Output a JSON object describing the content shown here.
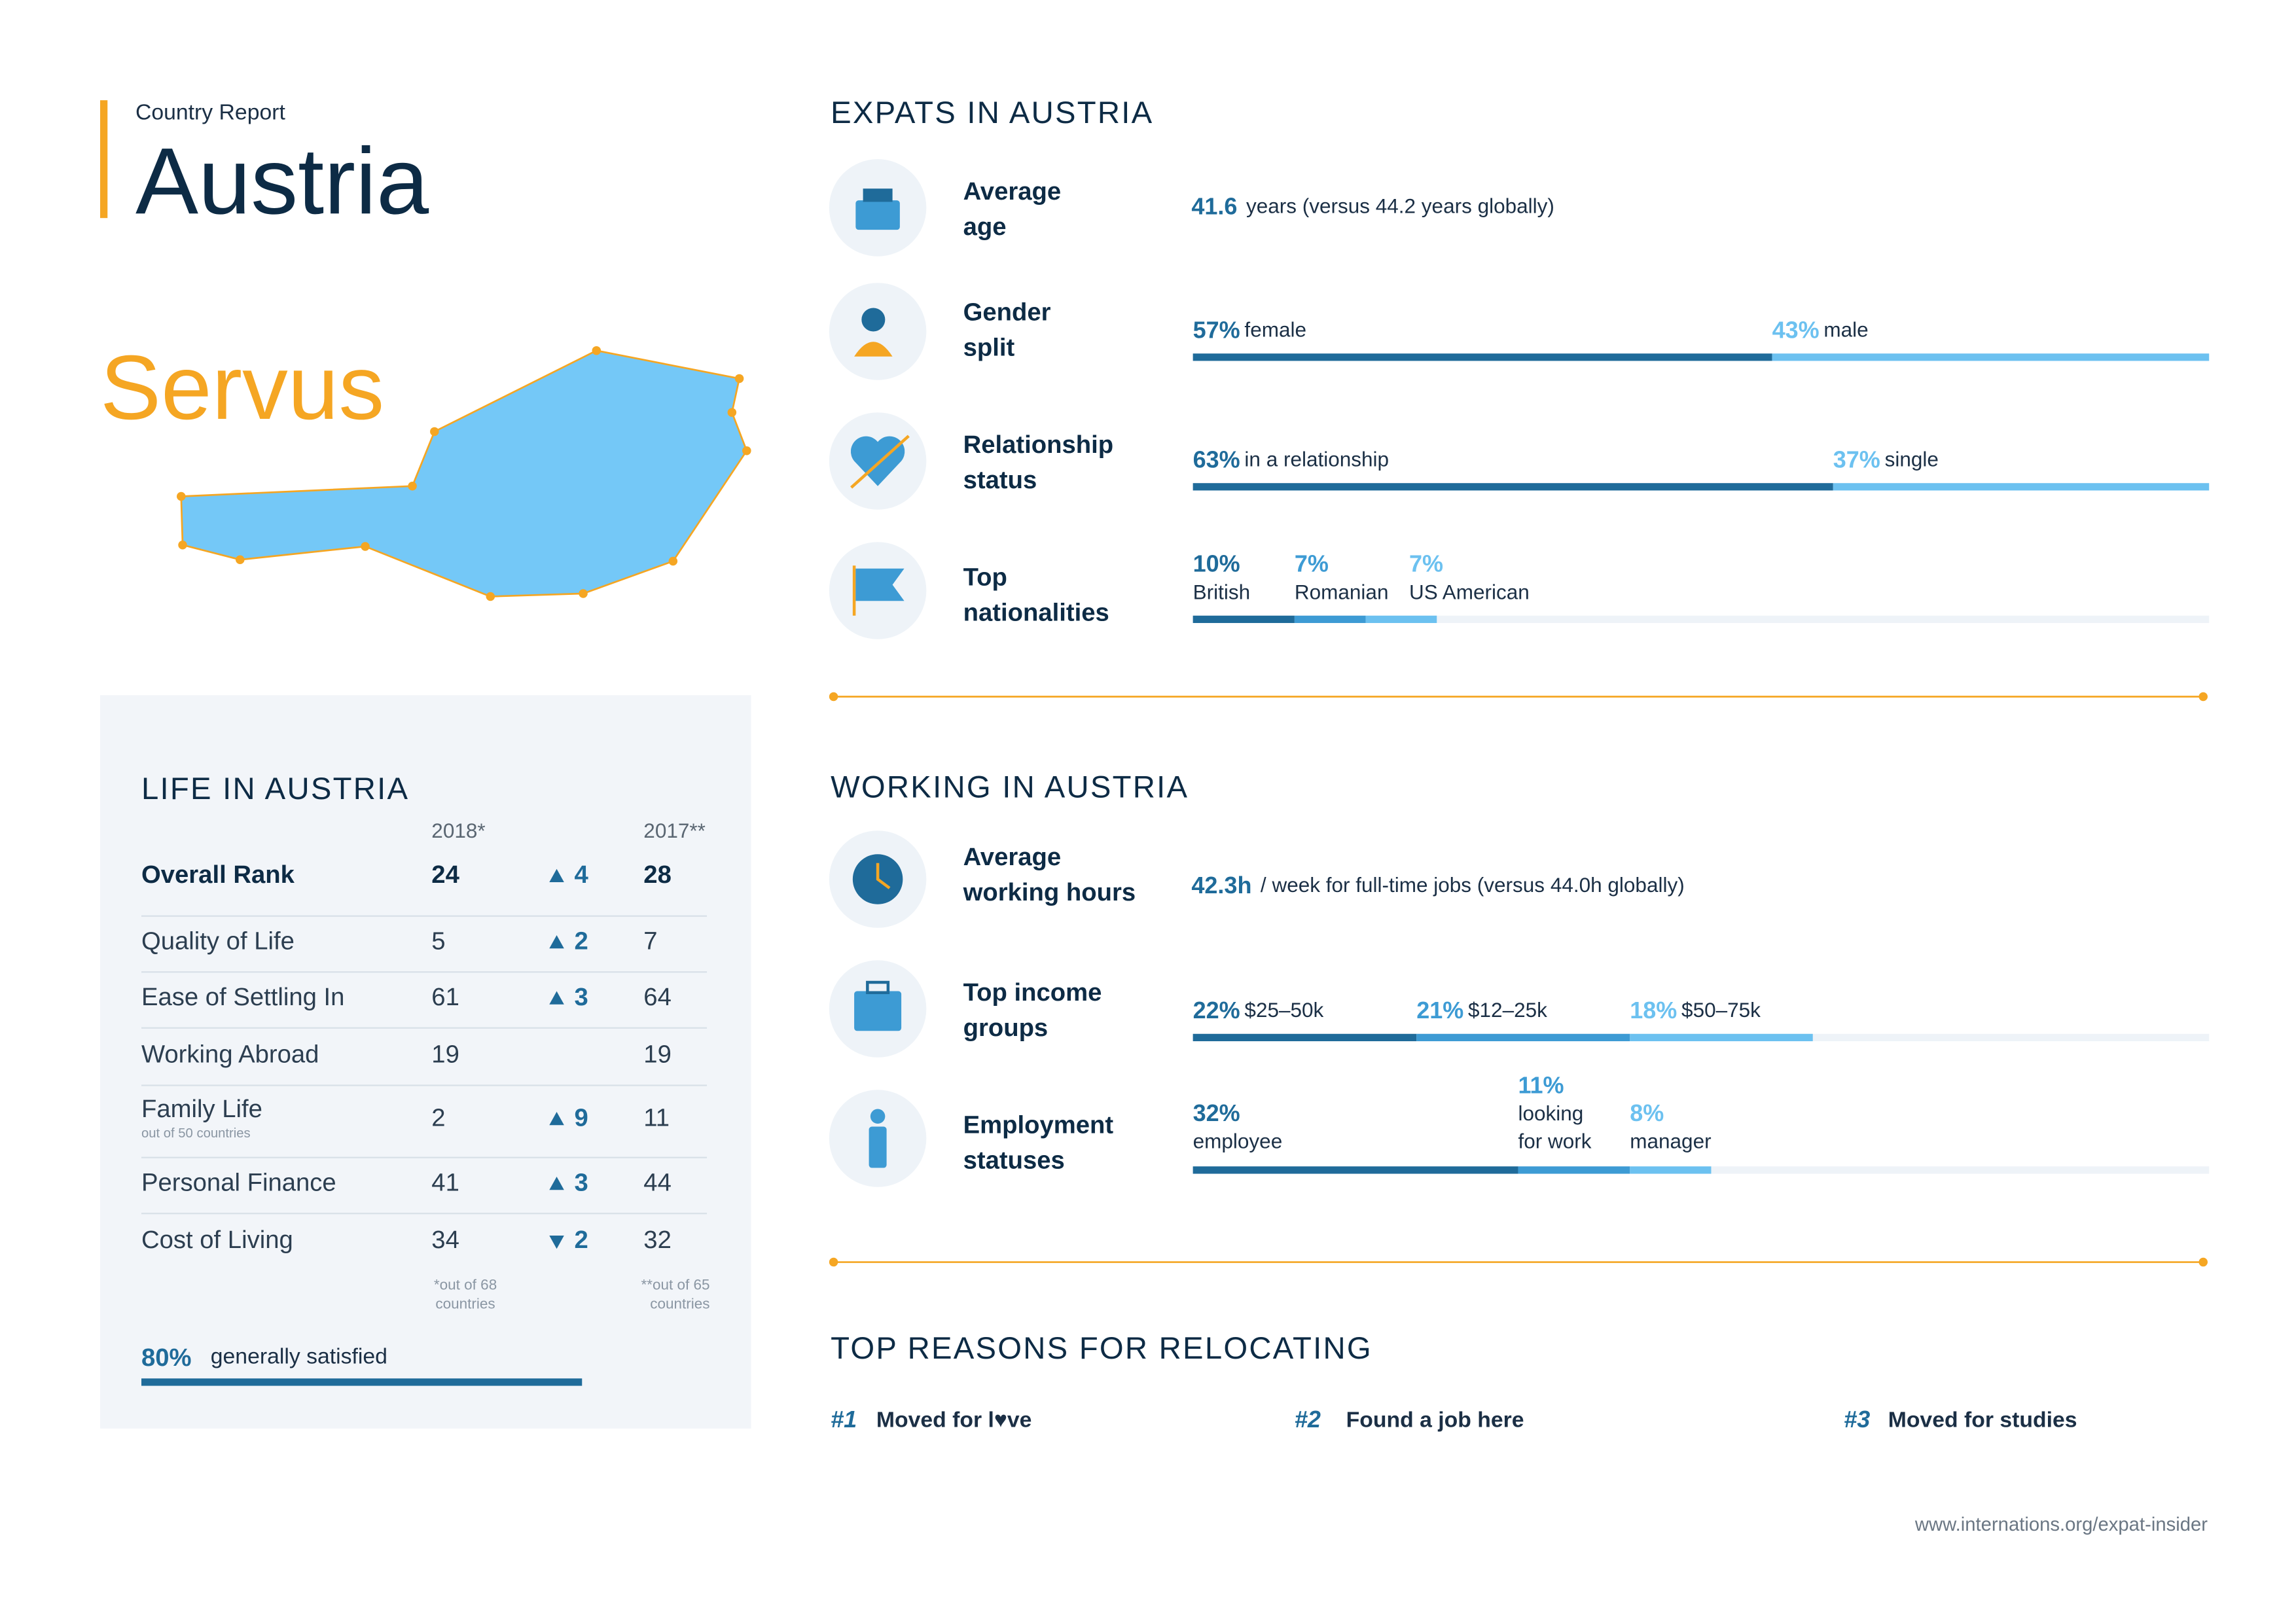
{
  "header": {
    "kicker": "Country Report",
    "title": "Austria"
  },
  "greeting": "Servus",
  "life": {
    "title": "LIFE IN AUSTRIA",
    "col_2018": "2018*",
    "col_2017": "2017**",
    "rows": [
      {
        "label": "Overall Rank",
        "r2018": 24,
        "direction": "up",
        "change": 4,
        "r2017": 28
      },
      {
        "label": "Quality of Life",
        "r2018": 5,
        "direction": "up",
        "change": 2,
        "r2017": 7
      },
      {
        "label": "Ease of Settling In",
        "r2018": 61,
        "direction": "up",
        "change": 3,
        "r2017": 64
      },
      {
        "label": "Working Abroad",
        "r2018": 19,
        "direction": null,
        "change": null,
        "r2017": 19
      },
      {
        "label": "Family Life",
        "sublabel": "out of 50 countries",
        "r2018": 2,
        "direction": "up",
        "change": 9,
        "r2017": 11
      },
      {
        "label": "Personal Finance",
        "r2018": 41,
        "direction": "up",
        "change": 3,
        "r2017": 44
      },
      {
        "label": "Cost of Living",
        "r2018": 34,
        "direction": "down",
        "change": 2,
        "r2017": 32
      }
    ],
    "note_2018": [
      "*out of 68",
      "countries"
    ],
    "note_2017": [
      "**out of 65",
      "countries"
    ],
    "satisfied": {
      "value": 80,
      "label": "80%",
      "text": "generally satisfied",
      "color": "#1f6b9a"
    }
  },
  "expats": {
    "title": "EXPATS IN AUSTRIA",
    "items": [
      {
        "label": [
          "Average",
          "age"
        ],
        "value": 41.6,
        "text": "years (versus 44.2 years globally)"
      },
      {
        "label": [
          "Gender",
          "split"
        ],
        "segments": [
          {
            "value": 57,
            "label": "57%",
            "text": "female",
            "color": "#1f6b9a"
          },
          {
            "value": 43,
            "label": "43%",
            "text": "male",
            "color": "#6cc1f0"
          }
        ]
      },
      {
        "label": [
          "Relationship",
          "status"
        ],
        "segments": [
          {
            "value": 63,
            "label": "63%",
            "text": "in a relationship",
            "color": "#1f6b9a"
          },
          {
            "value": 37,
            "label": "37%",
            "text": "single",
            "color": "#6cc1f0"
          }
        ]
      },
      {
        "label": [
          "Top",
          "nationalities"
        ],
        "segments": [
          {
            "value": 10,
            "label": "10%",
            "text": [
              "British"
            ],
            "color": "#1f6b9a"
          },
          {
            "value": 7,
            "label": "7%",
            "text": [
              "Romanian"
            ],
            "color": "#3d9bd4"
          },
          {
            "value": 7,
            "label": "7%",
            "text": [
              "US American"
            ],
            "color": "#6cc1f0"
          }
        ]
      }
    ]
  },
  "working": {
    "title": "WORKING IN AUSTRIA",
    "items": [
      {
        "label": [
          "Average",
          "working hours"
        ],
        "value": {
          "value": 42.3,
          "label": "42.3h"
        },
        "text": "/ week for full-time jobs (versus 44.0h globally)"
      },
      {
        "label": [
          "Top income",
          "groups"
        ],
        "segments": [
          {
            "value": 22,
            "label": "22%",
            "text": "$25–50k",
            "color": "#1f6b9a"
          },
          {
            "value": 21,
            "label": "21%",
            "text": "$12–25k",
            "color": "#3d9bd4"
          },
          {
            "value": 18,
            "label": "18%",
            "text": "$50–75k",
            "color": "#6cc1f0"
          }
        ]
      },
      {
        "label": [
          "Employment",
          "statuses"
        ],
        "segments": [
          {
            "value": 32,
            "label": "32%",
            "text": [
              "employee"
            ],
            "color": "#1f6b9a"
          },
          {
            "value": 11,
            "label": "11%",
            "text": [
              "looking",
              "for work"
            ],
            "color": "#3d9bd4"
          },
          {
            "value": 8,
            "label": "8%",
            "text": [
              "manager"
            ],
            "color": "#6cc1f0"
          }
        ]
      }
    ]
  },
  "reasons": {
    "title": "TOP REASONS FOR RELOCATING",
    "items": [
      {
        "rank": "#1",
        "text": "Moved for l♥ve"
      },
      {
        "rank": "#2",
        "text": "Found a job here"
      },
      {
        "rank": "#3",
        "text": "Moved for studies"
      }
    ]
  },
  "footer": "www.internations.org/expat-insider"
}
